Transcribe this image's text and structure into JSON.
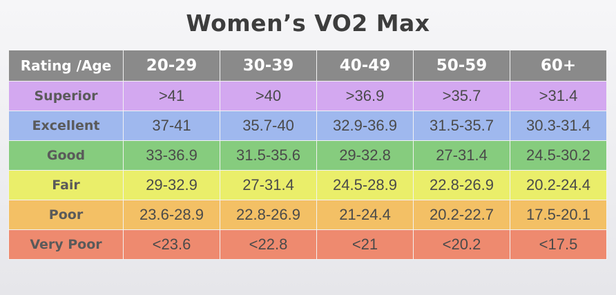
{
  "title": "Women’s VO2 Max",
  "table": {
    "corner_label": "Rating /Age",
    "age_columns": [
      "20-29",
      "30-39",
      "40-49",
      "50-59",
      "60+"
    ],
    "rows": [
      {
        "rating": "Superior",
        "values": [
          ">41",
          ">40",
          ">36.9",
          ">35.7",
          ">31.4"
        ],
        "color": "#d3a8f0"
      },
      {
        "rating": "Excellent",
        "values": [
          "37-41",
          "35.7-40",
          "32.9-36.9",
          "31.5-35.7",
          "30.3-31.4"
        ],
        "color": "#9fb8ee"
      },
      {
        "rating": "Good",
        "values": [
          "33-36.9",
          "31.5-35.6",
          "29-32.8",
          "27-31.4",
          "24.5-30.2"
        ],
        "color": "#86cc7e"
      },
      {
        "rating": "Fair",
        "values": [
          "29-32.9",
          "27-31.4",
          "24.5-28.9",
          "22.8-26.9",
          "20.2-24.4"
        ],
        "color": "#eaee6a"
      },
      {
        "rating": "Poor",
        "values": [
          "23.6-28.9",
          "22.8-26.9",
          "21-24.4",
          "20.2-22.7",
          "17.5-20.1"
        ],
        "color": "#f3c065"
      },
      {
        "rating": "Very Poor",
        "values": [
          "<23.6",
          "<22.8",
          "<21",
          "<20.2",
          "<17.5"
        ],
        "color": "#ee8a6f"
      }
    ]
  },
  "colors": {
    "header_bg": "#8a8a8a",
    "title_text": "#3d3d3d"
  }
}
